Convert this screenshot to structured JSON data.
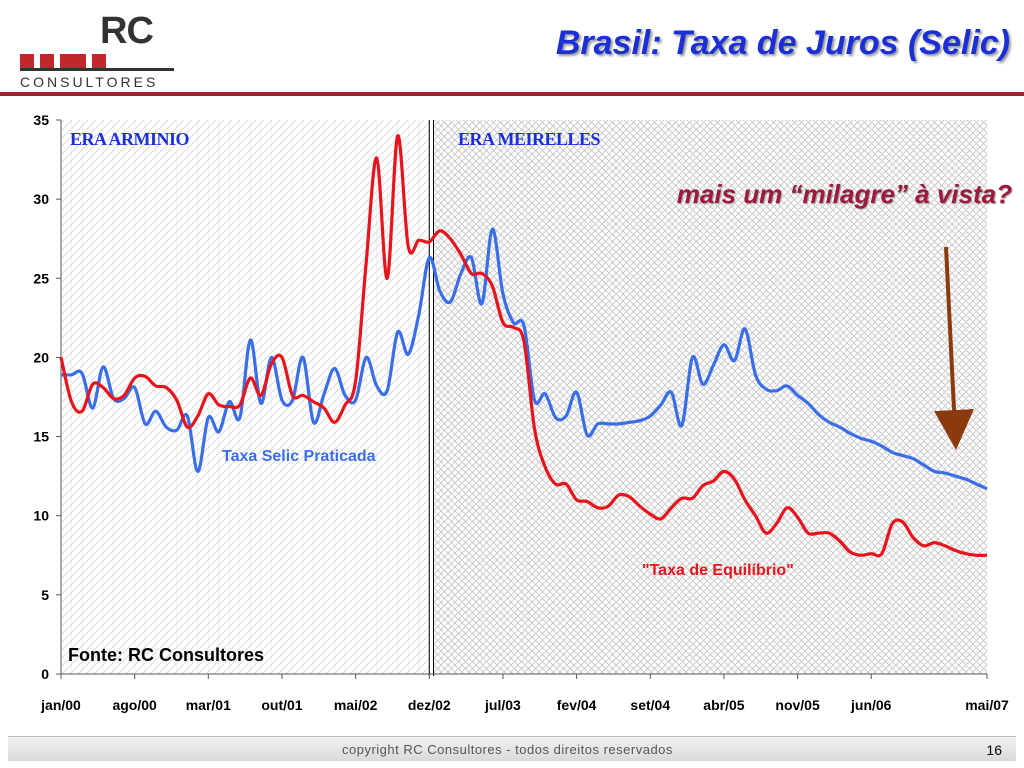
{
  "header": {
    "logo_rc": "RC",
    "logo_sub": "CONSULTORES",
    "title": "Brasil: Taxa de Juros (Selic)"
  },
  "footer": {
    "copyright": "copyright RC Consultores - todos direitos reservados",
    "page_number": "16"
  },
  "colors": {
    "selic": "#3a6ee8",
    "equilibrio": "#e8141c",
    "title": "#1a2fd6",
    "accent": "#a52030",
    "arrow": "#8b3a0e"
  },
  "chart_data": {
    "type": "line",
    "title": "",
    "xlabel": "",
    "ylabel": "",
    "ylim": [
      0,
      35
    ],
    "y_ticks": [
      "0",
      "5",
      "10",
      "15",
      "20",
      "25",
      "30",
      "35"
    ],
    "x_tick_labels": [
      "jan/00",
      "ago/00",
      "mar/01",
      "out/01",
      "mai/02",
      "dez/02",
      "jul/03",
      "fev/04",
      "set/04",
      "abr/05",
      "nov/05",
      "jun/06",
      "mai/07"
    ],
    "x_tick_index": [
      0,
      7,
      14,
      21,
      28,
      35,
      42,
      49,
      56,
      63,
      70,
      77,
      88
    ],
    "x_range": [
      0,
      88
    ],
    "eras": [
      {
        "label": "ERA ARMINIO",
        "from": 0,
        "to": 35
      },
      {
        "label": "ERA MEIRELLES",
        "from": 35.4,
        "to": 88
      }
    ],
    "annotations": {
      "source": "Fonte: RC Consultores",
      "question": "mais um “milagre” à vista?",
      "selic_label": "Taxa Selic Praticada",
      "equilibrio_label": "\"Taxa de Equilíbrio\""
    },
    "series": [
      {
        "name": "Taxa Selic Praticada",
        "values": [
          18.9,
          18.9,
          19.0,
          16.8,
          19.4,
          17.4,
          17.4,
          18.1,
          15.8,
          16.6,
          15.6,
          15.4,
          16.3,
          12.8,
          16.2,
          15.3,
          17.2,
          16.2,
          21.1,
          17.1,
          20.0,
          17.3,
          17.3,
          20.0,
          15.9,
          17.7,
          19.3,
          17.6,
          17.3,
          20.0,
          18.2,
          17.9,
          21.6,
          20.2,
          22.7,
          26.3,
          24.2,
          23.5,
          25.3,
          26.3,
          23.4,
          28.1,
          24.0,
          22.2,
          22.0,
          17.3,
          17.7,
          16.2,
          16.3,
          17.8,
          15.1,
          15.8,
          15.8,
          15.8,
          15.9,
          16.0,
          16.3,
          17.0,
          17.8,
          15.7,
          20.0,
          18.3,
          19.5,
          20.8,
          19.8,
          21.8,
          18.9,
          18.0,
          17.9,
          18.2,
          17.6,
          17.1,
          16.4,
          15.9,
          15.6,
          15.2,
          14.9,
          14.7,
          14.4,
          14.0,
          13.8,
          13.6,
          13.2,
          12.8,
          12.7,
          12.5,
          12.3,
          12.0,
          11.7
        ]
      },
      {
        "name": "\"Taxa de Equilíbrio\"",
        "values": [
          20.0,
          17.2,
          16.6,
          18.3,
          18.1,
          17.4,
          17.6,
          18.7,
          18.8,
          18.2,
          18.1,
          17.3,
          15.6,
          16.3,
          17.7,
          17.0,
          16.9,
          17.0,
          18.7,
          17.6,
          19.6,
          20.0,
          17.6,
          17.6,
          17.2,
          16.8,
          15.9,
          17.0,
          18.5,
          26.0,
          32.6,
          25.0,
          34.0,
          27.0,
          27.4,
          27.3,
          28.0,
          27.5,
          26.5,
          25.3,
          25.3,
          24.5,
          22.2,
          21.9,
          21.0,
          15.5,
          13.1,
          12.0,
          12.0,
          11.0,
          10.9,
          10.5,
          10.6,
          11.3,
          11.2,
          10.6,
          10.1,
          9.8,
          10.5,
          11.1,
          11.1,
          11.9,
          12.2,
          12.8,
          12.3,
          11.0,
          10.0,
          8.9,
          9.5,
          10.5,
          9.9,
          8.9,
          8.9,
          8.9,
          8.4,
          7.7,
          7.5,
          7.6,
          7.6,
          9.5,
          9.6,
          8.6,
          8.1,
          8.3,
          8.1,
          7.8,
          7.6,
          7.5,
          7.5
        ]
      }
    ]
  }
}
